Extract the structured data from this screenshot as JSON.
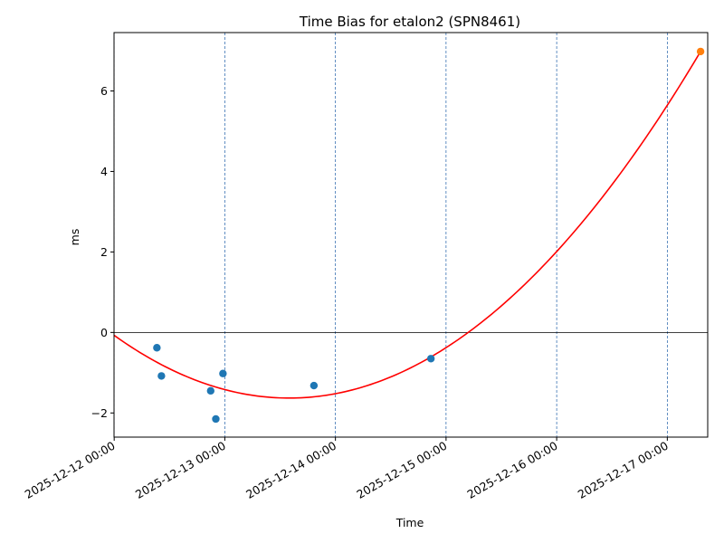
{
  "chart_data": {
    "type": "scatter",
    "title": "Time Bias for etalon2 (SPN8461)",
    "xlabel": "Time",
    "ylabel": "ms",
    "x_axis_type": "date",
    "xlim": [
      "2025-12-11 23:58",
      "2025-12-17 08:46"
    ],
    "ylim": [
      -2.6,
      7.45
    ],
    "x_ticks": [
      "2025-12-12 00:00",
      "2025-12-13 00:00",
      "2025-12-14 00:00",
      "2025-12-15 00:00",
      "2025-12-16 00:00",
      "2025-12-17 00:00"
    ],
    "y_ticks": [
      -2,
      0,
      2,
      4,
      6
    ],
    "y_tick_labels": [
      "−2",
      "0",
      "2",
      "4",
      "6"
    ],
    "vertical_gridlines": "dashed, at x ticks",
    "zero_line": true,
    "series": [
      {
        "kind": "scatter",
        "color": "#1f77b4",
        "points": [
          {
            "x": "2025-12-12 09:16",
            "y": -0.38
          },
          {
            "x": "2025-12-12 10:15",
            "y": -1.08
          },
          {
            "x": "2025-12-12 20:56",
            "y": -1.45
          },
          {
            "x": "2025-12-12 22:03",
            "y": -2.15
          },
          {
            "x": "2025-12-12 23:36",
            "y": -1.02
          },
          {
            "x": "2025-12-13 19:20",
            "y": -1.32
          },
          {
            "x": "2025-12-14 20:43",
            "y": -0.65
          }
        ]
      },
      {
        "kind": "scatter",
        "color": "#ff7f0e",
        "points": [
          {
            "x": "2025-12-17 07:13",
            "y": 6.98
          }
        ]
      },
      {
        "kind": "line",
        "color": "#ff0000",
        "model": "quadratic",
        "vertex": {
          "x": "2025-12-13 13:58",
          "y": -1.63
        },
        "points": [
          {
            "x": "2025-12-12 00:00",
            "y": -0.15
          },
          {
            "x": "2025-12-13 00:00",
            "y": -1.45
          },
          {
            "x": "2025-12-13 13:58",
            "y": -1.63
          },
          {
            "x": "2025-12-14 00:00",
            "y": -1.5
          },
          {
            "x": "2025-12-15 00:00",
            "y": -0.35
          },
          {
            "x": "2025-12-16 00:00",
            "y": 2.05
          },
          {
            "x": "2025-12-17 00:00",
            "y": 5.65
          },
          {
            "x": "2025-12-17 07:13",
            "y": 6.98
          }
        ]
      }
    ]
  }
}
